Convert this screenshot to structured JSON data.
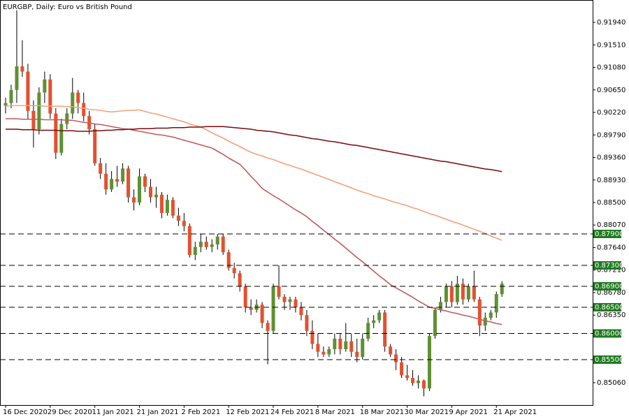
{
  "chart_data": {
    "type": "candlestick",
    "title": "EURGBP, Daily:  Euro vs British Pound",
    "categories": [
      "16 Dec 2020",
      null,
      null,
      null,
      null,
      null,
      null,
      null,
      "29 Dec 2020",
      null,
      null,
      null,
      null,
      null,
      null,
      null,
      "11 Jan 2021",
      null,
      null,
      null,
      null,
      null,
      null,
      null,
      "21 Jan 2021",
      null,
      null,
      null,
      null,
      null,
      null,
      null,
      "2 Feb 2021",
      null,
      null,
      null,
      null,
      null,
      null,
      null,
      "12 Feb 2021",
      null,
      null,
      null,
      null,
      null,
      null,
      null,
      "24 Feb 2021",
      null,
      null,
      null,
      null,
      null,
      null,
      null,
      "8 Mar 2021",
      null,
      null,
      null,
      null,
      null,
      null,
      null,
      "18 Mar 2021",
      null,
      null,
      null,
      null,
      null,
      null,
      null,
      "30 Mar 2021",
      null,
      null,
      null,
      null,
      null,
      null,
      null,
      "9 Apr 2021",
      null,
      null,
      null,
      null,
      null,
      null,
      null,
      "21 Apr 2021",
      null
    ],
    "open": [
      0.9035,
      0.904,
      0.9065,
      0.911,
      0.91,
      0.9025,
      0.899,
      0.906,
      0.9085,
      0.902,
      0.8945,
      0.9,
      0.902,
      0.906,
      0.904,
      0.9015,
      0.899,
      0.8925,
      0.8905,
      0.8875,
      0.8895,
      0.889,
      0.8915,
      0.886,
      0.885,
      0.89,
      0.888,
      0.886,
      0.8865,
      0.883,
      0.8855,
      0.8825,
      0.8815,
      0.8805,
      0.875,
      0.8765,
      0.8775,
      0.8765,
      0.877,
      0.8785,
      0.8755,
      0.8725,
      0.8715,
      0.869,
      0.865,
      0.8645,
      0.8655,
      0.862,
      0.8605,
      0.869,
      0.867,
      0.866,
      0.8665,
      0.865,
      0.8635,
      0.8605,
      0.858,
      0.8565,
      0.856,
      0.857,
      0.859,
      0.857,
      0.8585,
      0.8565,
      0.8555,
      0.859,
      0.862,
      0.8625,
      0.864,
      0.8575,
      0.856,
      0.8545,
      0.852,
      0.8515,
      0.8505,
      0.851,
      0.8495,
      0.8595,
      0.8645,
      0.866,
      0.869,
      0.866,
      0.8695,
      0.8665,
      0.869,
      0.8665,
      0.8615,
      0.863,
      0.864,
      0.8675
    ],
    "high": [
      0.905,
      0.9075,
      0.9217,
      0.916,
      0.9115,
      0.9045,
      0.907,
      0.91,
      0.9095,
      0.903,
      0.901,
      0.903,
      0.9088,
      0.9065,
      0.906,
      0.9025,
      0.9,
      0.8935,
      0.8925,
      0.891,
      0.892,
      0.8925,
      0.892,
      0.8875,
      0.8915,
      0.8905,
      0.8895,
      0.888,
      0.887,
      0.8865,
      0.886,
      0.884,
      0.883,
      0.881,
      0.8775,
      0.879,
      0.8785,
      0.878,
      0.879,
      0.879,
      0.876,
      0.8735,
      0.872,
      0.8695,
      0.8665,
      0.8665,
      0.866,
      0.8625,
      0.8695,
      0.873,
      0.8675,
      0.867,
      0.867,
      0.866,
      0.8645,
      0.8625,
      0.86,
      0.8575,
      0.8575,
      0.86,
      0.86,
      0.862,
      0.86,
      0.859,
      0.86,
      0.863,
      0.8635,
      0.8645,
      0.8645,
      0.858,
      0.857,
      0.8555,
      0.854,
      0.853,
      0.852,
      0.8512,
      0.86,
      0.865,
      0.867,
      0.8695,
      0.87,
      0.871,
      0.8705,
      0.8695,
      0.872,
      0.867,
      0.864,
      0.8645,
      0.868,
      0.87
    ],
    "low": [
      0.902,
      0.903,
      0.904,
      0.909,
      0.901,
      0.8955,
      0.898,
      0.904,
      0.901,
      0.8933,
      0.894,
      0.899,
      0.901,
      0.902,
      0.9005,
      0.898,
      0.892,
      0.8895,
      0.8865,
      0.887,
      0.888,
      0.8885,
      0.885,
      0.8835,
      0.8845,
      0.887,
      0.885,
      0.884,
      0.882,
      0.8825,
      0.882,
      0.8805,
      0.8795,
      0.8745,
      0.874,
      0.8755,
      0.876,
      0.8755,
      0.876,
      0.875,
      0.872,
      0.8705,
      0.868,
      0.864,
      0.8635,
      0.864,
      0.861,
      0.8541,
      0.86,
      0.8665,
      0.8645,
      0.8645,
      0.864,
      0.8625,
      0.8595,
      0.857,
      0.8555,
      0.8555,
      0.8555,
      0.856,
      0.856,
      0.8565,
      0.8555,
      0.8545,
      0.855,
      0.8585,
      0.861,
      0.862,
      0.8565,
      0.8555,
      0.853,
      0.8515,
      0.851,
      0.85,
      0.8495,
      0.848,
      0.849,
      0.859,
      0.864,
      0.865,
      0.865,
      0.8655,
      0.8655,
      0.866,
      0.866,
      0.8595,
      0.8605,
      0.8625,
      0.863,
      0.867
    ],
    "close": [
      0.904,
      0.9065,
      0.911,
      0.91,
      0.9025,
      0.899,
      0.906,
      0.9085,
      0.902,
      0.8945,
      0.9,
      0.902,
      0.906,
      0.904,
      0.9015,
      0.899,
      0.8925,
      0.8905,
      0.8875,
      0.8895,
      0.889,
      0.8915,
      0.886,
      0.885,
      0.89,
      0.888,
      0.886,
      0.8865,
      0.883,
      0.8855,
      0.8825,
      0.8815,
      0.8805,
      0.875,
      0.8765,
      0.8775,
      0.8765,
      0.877,
      0.8785,
      0.8755,
      0.8725,
      0.8715,
      0.869,
      0.865,
      0.8645,
      0.8655,
      0.862,
      0.8605,
      0.869,
      0.867,
      0.866,
      0.8665,
      0.865,
      0.8635,
      0.8605,
      0.858,
      0.8565,
      0.856,
      0.857,
      0.859,
      0.857,
      0.8585,
      0.8565,
      0.8555,
      0.859,
      0.862,
      0.8625,
      0.864,
      0.8575,
      0.856,
      0.8545,
      0.852,
      0.8515,
      0.8505,
      0.851,
      0.8495,
      0.8595,
      0.8645,
      0.866,
      0.869,
      0.866,
      0.8695,
      0.8665,
      0.869,
      0.8665,
      0.8615,
      0.863,
      0.864,
      0.8675,
      0.8695
    ],
    "up_color": "#5e9132",
    "down_color": "#e4502f",
    "series": [
      {
        "color": "#c05a5a",
        "values": [
          0.901,
          0.901,
          0.901,
          0.9009,
          0.9009,
          0.9009,
          0.9009,
          0.9008,
          0.9008,
          0.9008,
          0.9008,
          0.9007,
          0.9007,
          0.9005,
          0.9003,
          0.9002,
          0.9,
          0.8999,
          0.8997,
          0.8995,
          0.8993,
          0.8991,
          0.899,
          0.8988,
          0.8986,
          0.8984,
          0.8982,
          0.898,
          0.8979,
          0.8977,
          0.8975,
          0.8972,
          0.8969,
          0.8966,
          0.8963,
          0.896,
          0.8957,
          0.8954,
          0.8948,
          0.8942,
          0.8935,
          0.8929,
          0.8923,
          0.8912,
          0.89,
          0.8889,
          0.8877,
          0.887,
          0.8863,
          0.8857,
          0.885,
          0.8843,
          0.8836,
          0.883,
          0.8823,
          0.8814,
          0.8806,
          0.8797,
          0.8789,
          0.878,
          0.8772,
          0.8763,
          0.8754,
          0.8745,
          0.8737,
          0.8728,
          0.8719,
          0.871,
          0.8702,
          0.8693,
          0.8687,
          0.8681,
          0.8675,
          0.8669,
          0.8662,
          0.8656,
          0.865,
          0.8648,
          0.8645,
          0.8643,
          0.864,
          0.8638,
          0.8635,
          0.8633,
          0.863,
          0.8627,
          0.8624,
          0.8622,
          0.8619,
          0.8617
        ]
      },
      {
        "color": "#f4a07a",
        "values": [
          0.9034,
          0.9035,
          0.9035,
          0.9035,
          0.9035,
          0.9035,
          0.9035,
          0.9034,
          0.9034,
          0.9034,
          0.9034,
          0.9033,
          0.9033,
          0.9031,
          0.903,
          0.9028,
          0.9027,
          0.9026,
          0.9024,
          0.9023,
          0.9024,
          0.9025,
          0.9026,
          0.9026,
          0.9027,
          0.9024,
          0.9021,
          0.9019,
          0.9016,
          0.9013,
          0.901,
          0.9007,
          0.9004,
          0.9,
          0.8997,
          0.8994,
          0.8989,
          0.8983,
          0.8978,
          0.8973,
          0.8967,
          0.8962,
          0.8957,
          0.8951,
          0.8946,
          0.8942,
          0.8939,
          0.8935,
          0.8932,
          0.8928,
          0.8924,
          0.8921,
          0.8917,
          0.8914,
          0.891,
          0.8906,
          0.8902,
          0.8898,
          0.8894,
          0.889,
          0.8886,
          0.8882,
          0.8878,
          0.8874,
          0.887,
          0.8867,
          0.8863,
          0.886,
          0.8857,
          0.8853,
          0.885,
          0.8847,
          0.8844,
          0.884,
          0.8837,
          0.8833,
          0.8829,
          0.8826,
          0.8822,
          0.8818,
          0.8814,
          0.8811,
          0.8807,
          0.8803,
          0.8799,
          0.8795,
          0.8791,
          0.8786,
          0.8782,
          0.8778
        ]
      },
      {
        "color": "#7b0a0a",
        "values": [
          0.899,
          0.899,
          0.899,
          0.8989,
          0.8989,
          0.8989,
          0.8988,
          0.8988,
          0.8988,
          0.8988,
          0.8987,
          0.8987,
          0.8987,
          0.8986,
          0.8986,
          0.8986,
          0.8987,
          0.8987,
          0.8988,
          0.8988,
          0.8989,
          0.8989,
          0.899,
          0.899,
          0.8991,
          0.8991,
          0.8991,
          0.8992,
          0.8992,
          0.8992,
          0.8993,
          0.8993,
          0.8993,
          0.8994,
          0.8994,
          0.8994,
          0.8995,
          0.8995,
          0.8995,
          0.8995,
          0.8994,
          0.8993,
          0.8992,
          0.8991,
          0.899,
          0.8988,
          0.8987,
          0.8986,
          0.8985,
          0.8983,
          0.8981,
          0.8979,
          0.8978,
          0.8976,
          0.8974,
          0.8972,
          0.8971,
          0.8969,
          0.8967,
          0.8966,
          0.8964,
          0.8962,
          0.896,
          0.8959,
          0.8957,
          0.8955,
          0.8953,
          0.8951,
          0.8949,
          0.8947,
          0.8945,
          0.8943,
          0.8941,
          0.8939,
          0.8937,
          0.8935,
          0.8933,
          0.8931,
          0.8929,
          0.8928,
          0.8926,
          0.8924,
          0.8922,
          0.892,
          0.8918,
          0.8916,
          0.8914,
          0.8913,
          0.8911,
          0.8909
        ]
      }
    ],
    "levels": [
      {
        "value": 0.879,
        "label": "0.87900"
      },
      {
        "value": 0.873,
        "label": "0.87300"
      },
      {
        "value": 0.869,
        "label": "0.86900"
      },
      {
        "value": 0.865,
        "label": "0.86500"
      },
      {
        "value": 0.86,
        "label": "0.86000"
      },
      {
        "value": 0.855,
        "label": "0.85500"
      }
    ],
    "level_color": "#1f7a1f",
    "ylim": [
      0.84633,
      0.92367
    ],
    "yticks": [
      {
        "value": 0.9194,
        "label": "0.91940"
      },
      {
        "value": 0.9151,
        "label": "0.91510"
      },
      {
        "value": 0.9108,
        "label": "0.91080"
      },
      {
        "value": 0.9065,
        "label": "0.90650"
      },
      {
        "value": 0.9022,
        "label": "0.90220"
      },
      {
        "value": 0.8979,
        "label": "0.89790"
      },
      {
        "value": 0.8936,
        "label": "0.89360"
      },
      {
        "value": 0.8893,
        "label": "0.88930"
      },
      {
        "value": 0.885,
        "label": "0.88500"
      },
      {
        "value": 0.8807,
        "label": "0.88070"
      },
      {
        "value": 0.8764,
        "label": "0.87640"
      },
      {
        "value": 0.8721,
        "label": "0.87210"
      },
      {
        "value": 0.8678,
        "label": "0.86780"
      },
      {
        "value": 0.8635,
        "label": "0.86350"
      },
      {
        "value": 0.8506,
        "label": "0.85060"
      }
    ],
    "grid": false
  }
}
